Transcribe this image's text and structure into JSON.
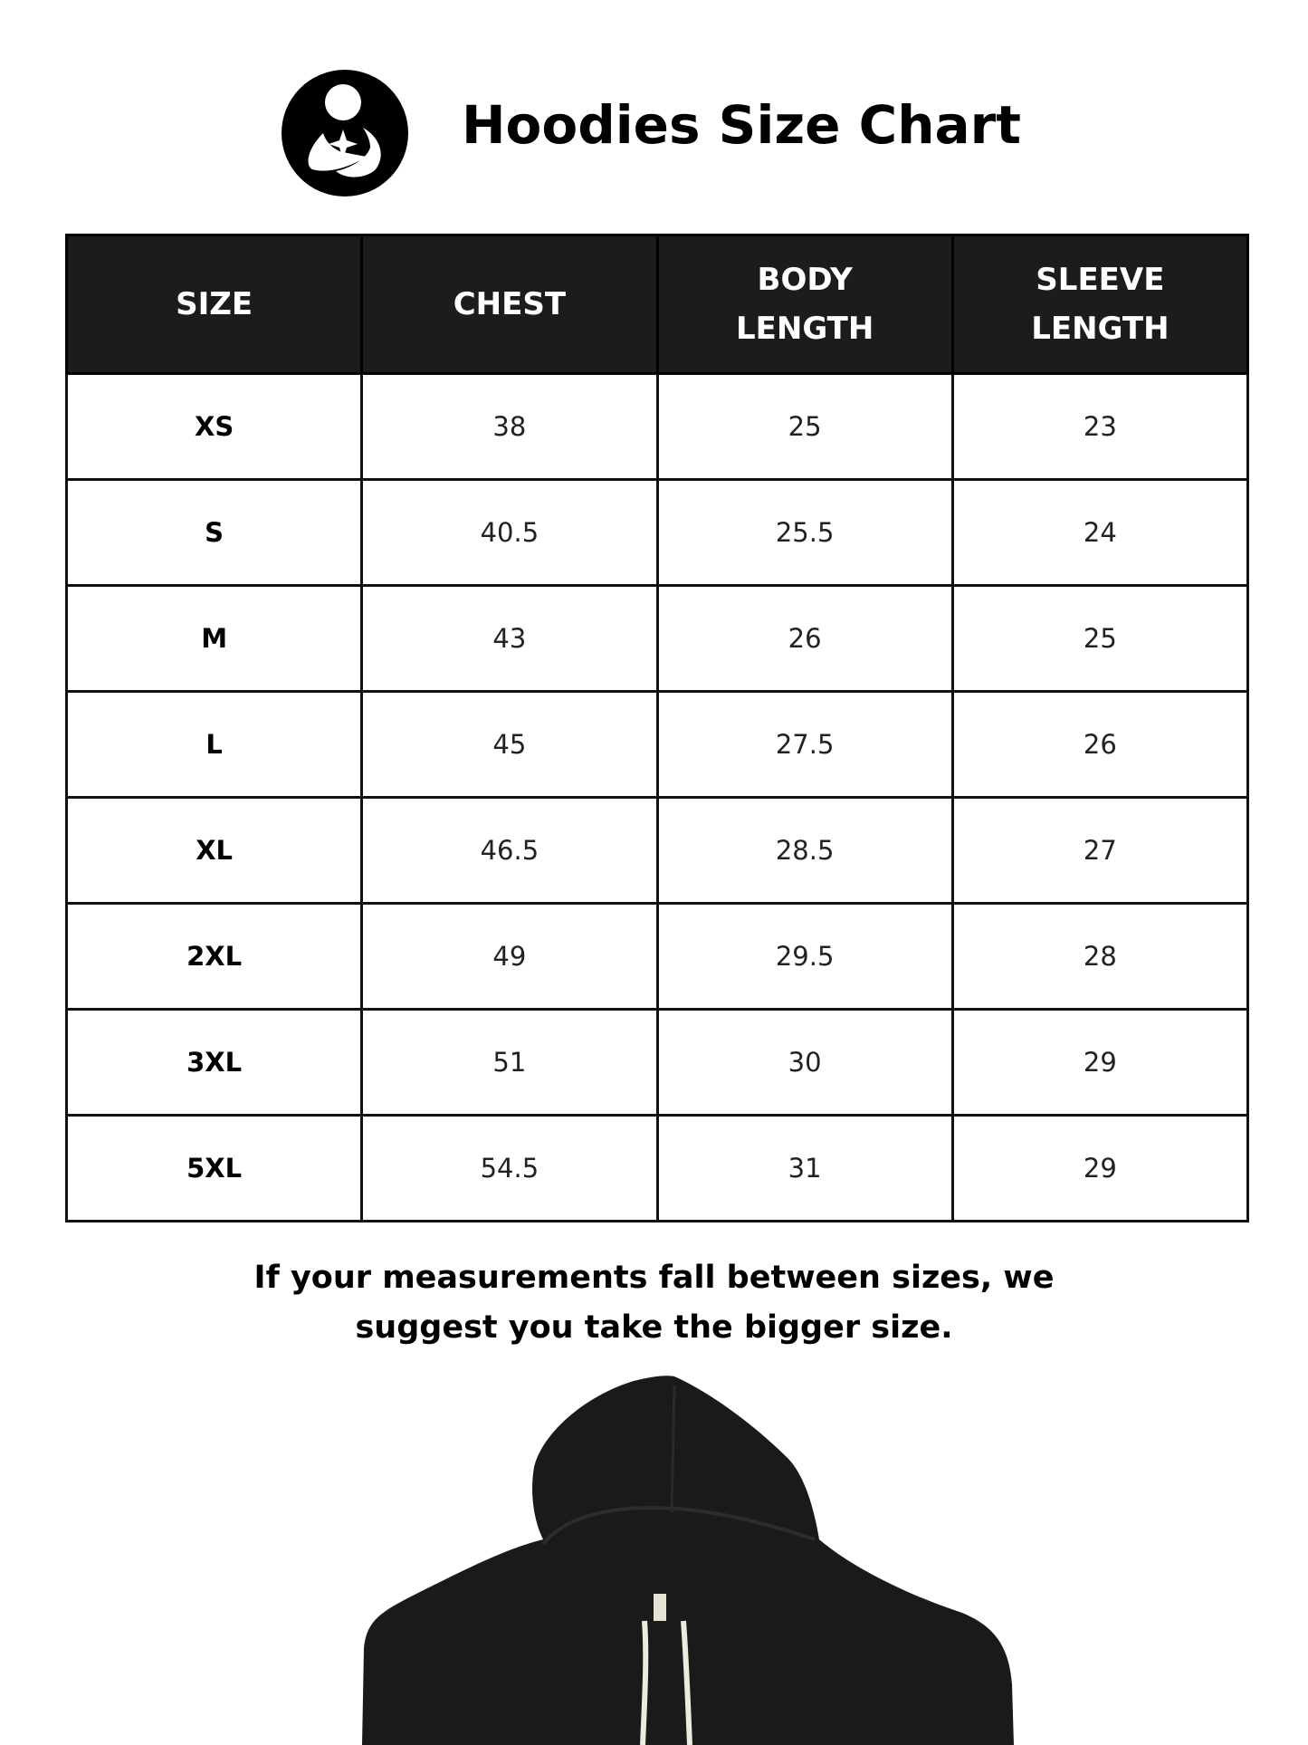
{
  "header": {
    "logo_icon": "mother-holding-baby-logo",
    "title": "Hoodies Size Chart"
  },
  "table": {
    "columns": [
      "SIZE",
      "CHEST",
      "BODY LENGTH",
      "SLEEVE LENGTH"
    ],
    "rows": [
      {
        "size": "XS",
        "chest": "38",
        "body_length": "25",
        "sleeve_length": "23"
      },
      {
        "size": "S",
        "chest": "40.5",
        "body_length": "25.5",
        "sleeve_length": "24"
      },
      {
        "size": "M",
        "chest": "43",
        "body_length": "26",
        "sleeve_length": "25"
      },
      {
        "size": "L",
        "chest": "45",
        "body_length": "27.5",
        "sleeve_length": "26"
      },
      {
        "size": "XL",
        "chest": "46.5",
        "body_length": "28.5",
        "sleeve_length": "27"
      },
      {
        "size": "2XL",
        "chest": "49",
        "body_length": "29.5",
        "sleeve_length": "28"
      },
      {
        "size": "3XL",
        "chest": "51",
        "body_length": "30",
        "sleeve_length": "29"
      },
      {
        "size": "5XL",
        "chest": "54.5",
        "body_length": "31",
        "sleeve_length": "29"
      }
    ]
  },
  "note": {
    "line1": "If your measurements fall between sizes, we",
    "line2": "suggest you take the bigger size."
  },
  "colors": {
    "header_bg": "#1c1c1c",
    "hoodie": "#1a1a1a",
    "drawstring": "#eeeae0"
  }
}
